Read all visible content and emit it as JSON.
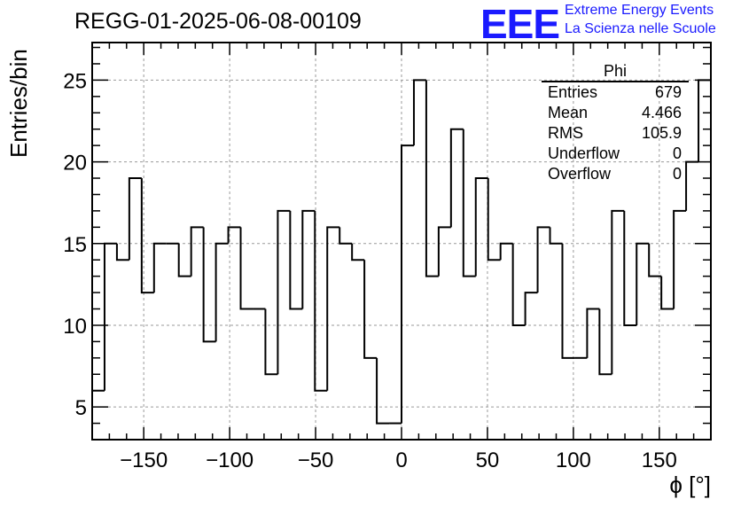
{
  "header": {
    "title": "REGG-01-2025-06-08-00109",
    "logo_text": "EEE",
    "logo_line1": "Extreme Energy Events",
    "logo_line2": "La Scienza nelle Scuole"
  },
  "stats_box": {
    "name": "Phi",
    "rows": [
      {
        "label": "Entries",
        "value": "679"
      },
      {
        "label": "Mean",
        "value": "4.466"
      },
      {
        "label": "RMS",
        "value": "105.9"
      },
      {
        "label": "Underflow",
        "value": "0"
      },
      {
        "label": "Overflow",
        "value": "0"
      }
    ]
  },
  "chart_data": {
    "type": "histogram",
    "title": "REGG-01-2025-06-08-00109",
    "xlabel": "ϕ [°]",
    "ylabel": "Entries/bin",
    "xlim": [
      -180,
      180
    ],
    "ylim": [
      3,
      27.3
    ],
    "bin_width": 7.2,
    "bin_edges_start": -180,
    "values": [
      6,
      15,
      14,
      19,
      12,
      15,
      15,
      13,
      16,
      9,
      15,
      16,
      11,
      11,
      7,
      17,
      11,
      17,
      6,
      16,
      15,
      14,
      8,
      4,
      4,
      21,
      25,
      13,
      16,
      22,
      13,
      19,
      14,
      15,
      10,
      12,
      16,
      15,
      8,
      8,
      11,
      7,
      17,
      10,
      15,
      13,
      11,
      17,
      20,
      25
    ],
    "x_ticks": [
      "−150",
      "−100",
      "−50",
      "0",
      "50",
      "100",
      "150"
    ],
    "x_tick_values": [
      -150,
      -100,
      -50,
      0,
      50,
      100,
      150
    ],
    "y_ticks": [
      "5",
      "10",
      "15",
      "20",
      "25"
    ],
    "y_tick_values": [
      5,
      10,
      15,
      20,
      25
    ],
    "grid": true,
    "line_color": "#000000"
  }
}
